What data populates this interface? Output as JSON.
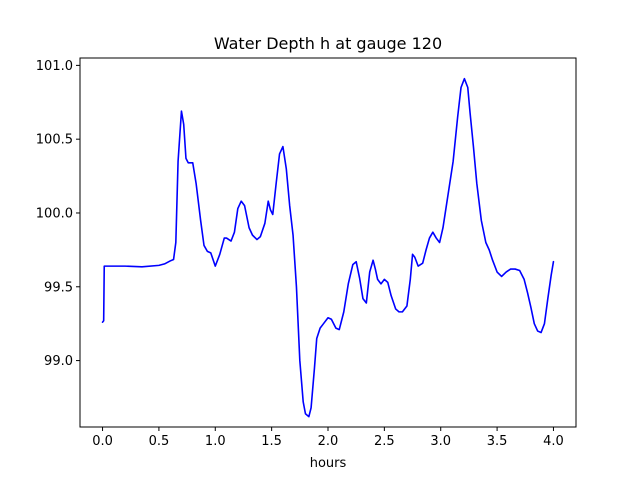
{
  "chart_data": {
    "type": "line",
    "title": "Water Depth h at gauge 120",
    "xlabel": "hours",
    "ylabel": "",
    "xlim": [
      -0.2,
      4.2
    ],
    "ylim": [
      98.55,
      101.05
    ],
    "xticks": [
      0.0,
      0.5,
      1.0,
      1.5,
      2.0,
      2.5,
      3.0,
      3.5,
      4.0
    ],
    "xtick_labels": [
      "0.0",
      "0.5",
      "1.0",
      "1.5",
      "2.0",
      "2.5",
      "3.0",
      "3.5",
      "4.0"
    ],
    "yticks": [
      99.0,
      99.5,
      100.0,
      100.5,
      101.0
    ],
    "ytick_labels": [
      "99.0",
      "99.5",
      "100.0",
      "100.5",
      "101.0"
    ],
    "grid": false,
    "series": [
      {
        "color": "#0000ff",
        "x": [
          0.0,
          0.01,
          0.015,
          0.2,
          0.35,
          0.5,
          0.55,
          0.6,
          0.63,
          0.65,
          0.67,
          0.7,
          0.72,
          0.74,
          0.76,
          0.8,
          0.83,
          0.87,
          0.9,
          0.93,
          0.96,
          1.0,
          1.04,
          1.08,
          1.1,
          1.14,
          1.17,
          1.2,
          1.23,
          1.26,
          1.3,
          1.33,
          1.37,
          1.4,
          1.44,
          1.47,
          1.49,
          1.51,
          1.54,
          1.57,
          1.6,
          1.63,
          1.66,
          1.69,
          1.72,
          1.75,
          1.78,
          1.8,
          1.83,
          1.85,
          1.88,
          1.9,
          1.93,
          1.96,
          2.0,
          2.03,
          2.07,
          2.1,
          2.14,
          2.18,
          2.22,
          2.25,
          2.28,
          2.31,
          2.34,
          2.37,
          2.4,
          2.42,
          2.44,
          2.47,
          2.5,
          2.53,
          2.56,
          2.6,
          2.63,
          2.66,
          2.7,
          2.73,
          2.75,
          2.77,
          2.8,
          2.84,
          2.87,
          2.9,
          2.93,
          2.96,
          2.99,
          3.02,
          3.05,
          3.08,
          3.11,
          3.15,
          3.18,
          3.21,
          3.24,
          3.26,
          3.29,
          3.32,
          3.36,
          3.4,
          3.43,
          3.46,
          3.5,
          3.54,
          3.58,
          3.62,
          3.66,
          3.7,
          3.74,
          3.77,
          3.8,
          3.83,
          3.86,
          3.89,
          3.92,
          3.95,
          3.98,
          4.0
        ],
        "y": [
          99.26,
          99.27,
          99.64,
          99.64,
          99.635,
          99.645,
          99.655,
          99.675,
          99.685,
          99.8,
          100.35,
          100.69,
          100.6,
          100.37,
          100.34,
          100.34,
          100.2,
          99.95,
          99.78,
          99.74,
          99.73,
          99.64,
          99.72,
          99.83,
          99.83,
          99.81,
          99.87,
          100.03,
          100.08,
          100.05,
          99.9,
          99.85,
          99.82,
          99.84,
          99.93,
          100.08,
          100.02,
          99.99,
          100.2,
          100.4,
          100.45,
          100.3,
          100.05,
          99.85,
          99.5,
          99.0,
          98.72,
          98.64,
          98.62,
          98.68,
          98.95,
          99.15,
          99.22,
          99.25,
          99.29,
          99.28,
          99.22,
          99.21,
          99.33,
          99.52,
          99.65,
          99.67,
          99.56,
          99.42,
          99.39,
          99.6,
          99.68,
          99.62,
          99.55,
          99.52,
          99.55,
          99.53,
          99.44,
          99.35,
          99.33,
          99.33,
          99.37,
          99.55,
          99.72,
          99.7,
          99.64,
          99.66,
          99.75,
          99.83,
          99.87,
          99.83,
          99.8,
          99.9,
          100.05,
          100.2,
          100.35,
          100.65,
          100.85,
          100.91,
          100.85,
          100.68,
          100.45,
          100.2,
          99.95,
          99.8,
          99.75,
          99.68,
          99.6,
          99.57,
          99.6,
          99.62,
          99.62,
          99.61,
          99.55,
          99.46,
          99.36,
          99.25,
          99.2,
          99.19,
          99.25,
          99.42,
          99.58,
          99.67
        ]
      }
    ]
  }
}
